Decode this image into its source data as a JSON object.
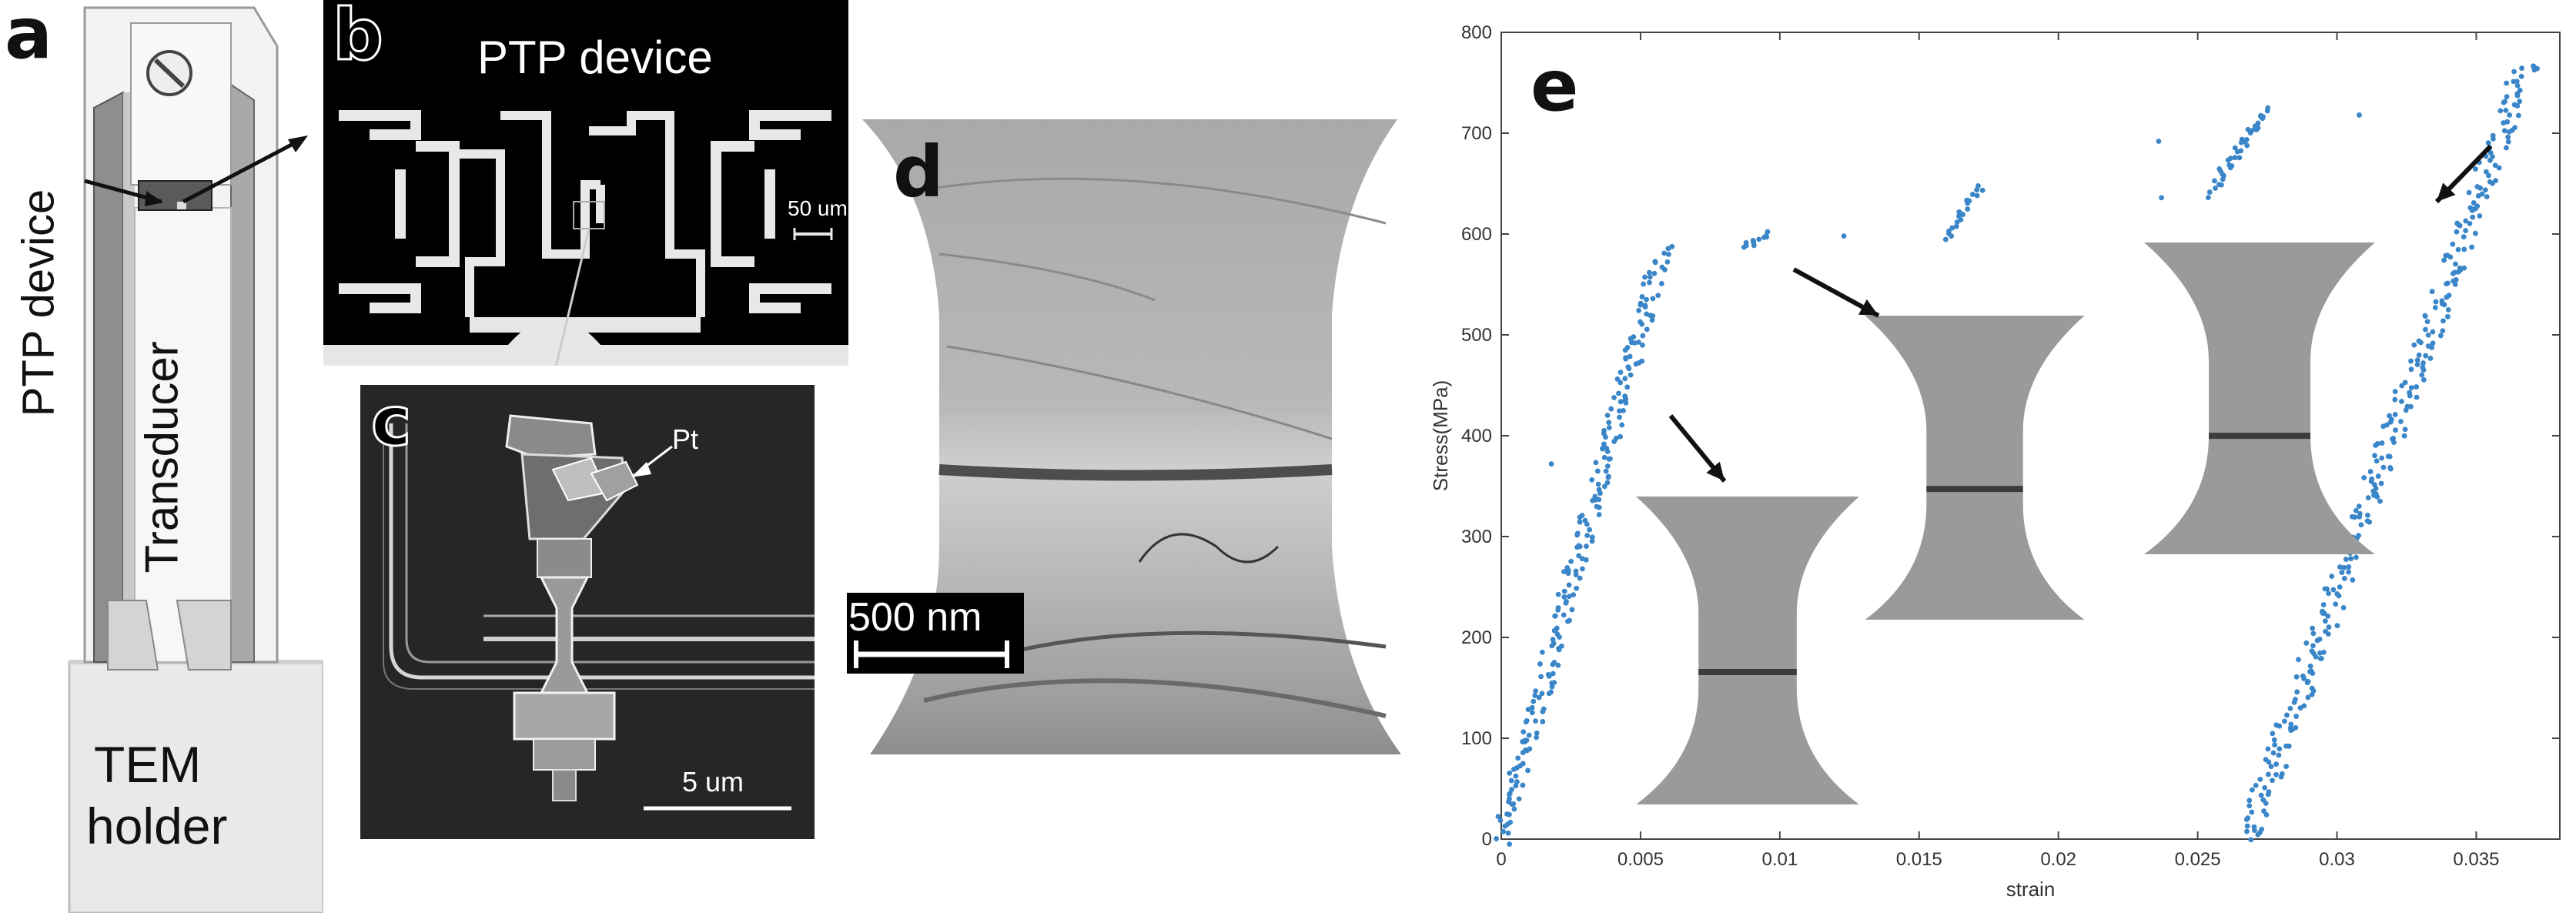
{
  "panel_a": {
    "letter": "a",
    "ptp_label": "PTP device",
    "transducer_label": "Transducer",
    "holder_label_line1": "TEM",
    "holder_label_line2": "holder"
  },
  "panel_b": {
    "letter": "b",
    "title": "PTP device",
    "scale_label": "50 um"
  },
  "panel_c": {
    "letter": "c",
    "pt_label": "Pt",
    "scale_label": "5 um"
  },
  "panel_d": {
    "letter": "d",
    "scale_label": "500 nm"
  },
  "panel_e": {
    "letter": "e"
  },
  "chart_data": {
    "type": "scatter",
    "xlabel": "strain",
    "ylabel": "Stress(MPa)",
    "xlim": [
      0,
      0.038
    ],
    "ylim": [
      0,
      800
    ],
    "xticks": [
      "0",
      "0.005",
      "0.01",
      "0.015",
      "0.02",
      "0.025",
      "0.03",
      "0.035"
    ],
    "yticks": [
      "0",
      "100",
      "200",
      "300",
      "400",
      "500",
      "600",
      "700",
      "800"
    ],
    "grid": false,
    "color": "#3a86c8",
    "segments": [
      {
        "x0": 0.0,
        "y0": 0,
        "x1": 0.0058,
        "y1": 585,
        "n": 230,
        "spread": 0.00035
      },
      {
        "x0": 0.0088,
        "y0": 585,
        "x1": 0.0095,
        "y1": 600,
        "n": 12,
        "spread": 0.0002
      },
      {
        "x0": 0.016,
        "y0": 595,
        "x1": 0.0172,
        "y1": 650,
        "n": 22,
        "spread": 0.0002
      },
      {
        "x0": 0.0255,
        "y0": 640,
        "x1": 0.0275,
        "y1": 725,
        "n": 40,
        "spread": 0.0002
      },
      {
        "x0": 0.0268,
        "y0": 0,
        "x1": 0.0368,
        "y1": 770,
        "n": 320,
        "spread": 0.00045
      }
    ],
    "outliers": [
      {
        "x": 0.0018,
        "y": 372
      },
      {
        "x": 0.0123,
        "y": 598
      },
      {
        "x": 0.0236,
        "y": 692
      },
      {
        "x": 0.0237,
        "y": 636
      },
      {
        "x": 0.0308,
        "y": 718
      }
    ]
  }
}
